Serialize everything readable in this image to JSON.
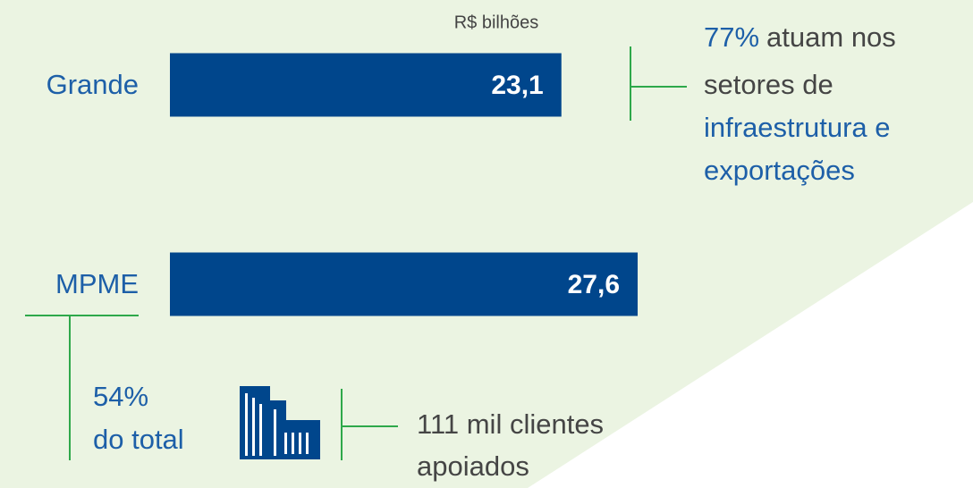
{
  "chart_data": {
    "type": "bar",
    "orientation": "horizontal",
    "unit": "R$ bilhões",
    "categories": [
      "Grande",
      "MPME"
    ],
    "values": [
      23.1,
      27.6
    ],
    "value_labels": [
      "23,1",
      "27,6"
    ],
    "color": "#00468c",
    "annotations": {
      "grande": [
        "77%",
        "atuam nos",
        "setores de",
        "infraestrutura e",
        "exportações"
      ],
      "mpme_share": [
        "54%",
        "do total"
      ],
      "mpme_clients": [
        "111 mil clientes",
        "apoiados"
      ]
    }
  }
}
